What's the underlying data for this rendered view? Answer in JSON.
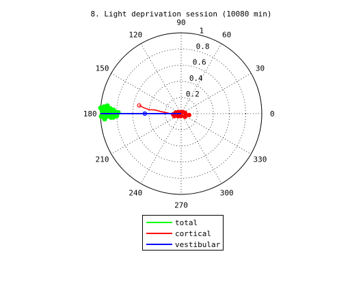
{
  "chart_data": {
    "type": "polar",
    "title": "8. Light deprivation session (10080 min)",
    "angle_ticks": [
      "0",
      "30",
      "60",
      "90",
      "120",
      "150",
      "180",
      "210",
      "240",
      "270",
      "300",
      "330"
    ],
    "angle_tick_values": [
      0,
      30,
      60,
      90,
      120,
      150,
      180,
      210,
      240,
      270,
      300,
      330
    ],
    "radius_ticks": [
      "0.2",
      "0.4",
      "0.6",
      "0.8",
      "1"
    ],
    "radius_tick_values": [
      0.2,
      0.4,
      0.6,
      0.8,
      1.0
    ],
    "rlim": [
      0,
      1
    ],
    "grid": true,
    "legend_position": "bottom-center",
    "series": [
      {
        "name": "total",
        "color": "#00ff00",
        "style": "scatter-cluster",
        "points_deg_r": [
          [
            176,
            1.0
          ],
          [
            177,
            0.97
          ],
          [
            178,
            0.93
          ],
          [
            179,
            0.9
          ],
          [
            181,
            0.88
          ],
          [
            183,
            0.84
          ],
          [
            181,
            0.82
          ],
          [
            179,
            0.8
          ],
          [
            178,
            0.86
          ],
          [
            175,
            0.96
          ],
          [
            174,
            0.92
          ],
          [
            176,
            0.88
          ],
          [
            178,
            0.85
          ],
          [
            182,
            0.9
          ],
          [
            184,
            0.95
          ],
          [
            182,
            0.99
          ],
          [
            180,
            0.97
          ],
          [
            177,
            0.84
          ],
          [
            179,
            0.78
          ],
          [
            182,
            0.8
          ],
          [
            183,
            0.87
          ],
          [
            181,
            0.93
          ],
          [
            178,
            0.98
          ],
          [
            176,
            0.94
          ],
          [
            180,
            0.86
          ]
        ]
      },
      {
        "name": "cortical",
        "color": "#ff0000",
        "style": "line",
        "points_deg_r": [
          [
            169,
            0.53
          ],
          [
            171,
            0.47
          ],
          [
            173,
            0.4
          ],
          [
            172,
            0.33
          ],
          [
            174,
            0.26
          ],
          [
            176,
            0.19
          ],
          [
            180,
            0.13
          ],
          [
            188,
            0.08
          ],
          [
            200,
            0.04
          ],
          [
            230,
            0.03
          ],
          [
            300,
            0.03
          ],
          [
            340,
            0.05
          ],
          [
            355,
            0.08
          ],
          [
            10,
            0.05
          ],
          [
            40,
            0.03
          ],
          [
            120,
            0.02
          ],
          [
            190,
            0.06
          ],
          [
            200,
            0.09
          ],
          [
            185,
            0.1
          ],
          [
            170,
            0.07
          ],
          [
            150,
            0.04
          ],
          [
            220,
            0.05
          ],
          [
            260,
            0.03
          ],
          [
            320,
            0.06
          ],
          [
            350,
            0.1
          ]
        ]
      },
      {
        "name": "vestibular",
        "color": "#0000ff",
        "style": "line-marker",
        "points_deg_r": [
          [
            180,
            0.0
          ],
          [
            180,
            1.0
          ],
          [
            180,
            0.45
          ]
        ]
      }
    ]
  }
}
